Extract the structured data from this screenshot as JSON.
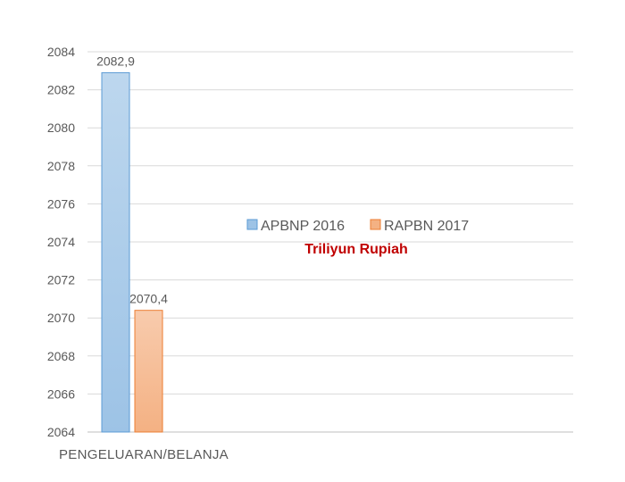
{
  "chart_data": {
    "type": "bar",
    "categories": [
      "PENGELUARAN/BELANJA"
    ],
    "series": [
      {
        "name": "APBNP 2016",
        "values": [
          2082.9
        ],
        "label": "2082,9",
        "color": "#9dc3e6",
        "color_top": "#bdd7ee",
        "border": "#5b9bd5"
      },
      {
        "name": "RAPBN 2017",
        "values": [
          2070.4
        ],
        "label": "2070,4",
        "color": "#f4b183",
        "color_top": "#f8cbad",
        "border": "#ed7d31"
      }
    ],
    "ylim": [
      2064,
      2084
    ],
    "yticks": [
      2064,
      2066,
      2068,
      2070,
      2072,
      2074,
      2076,
      2078,
      2080,
      2082,
      2084
    ],
    "grid": true,
    "legend_position": "center-right",
    "annotation": "Triliyun Rupiah",
    "annotation_color": "#c00000",
    "gridline_color": "#d9d9d9",
    "text_color": "#595959"
  }
}
